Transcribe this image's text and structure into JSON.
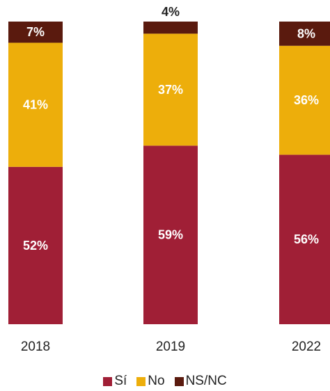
{
  "chart_data": {
    "type": "bar",
    "stacked": true,
    "normalized_percent": true,
    "categories": [
      "2018",
      "2019",
      "2022"
    ],
    "series": [
      {
        "name": "Sí",
        "values": [
          52,
          59,
          56
        ],
        "labels": [
          "52%",
          "59%",
          "56%"
        ],
        "color": "#a01f36"
      },
      {
        "name": "No",
        "values": [
          41,
          37,
          36
        ],
        "labels": [
          "41%",
          "37%",
          "36%"
        ],
        "color": "#edae0b"
      },
      {
        "name": "NS/NC",
        "values": [
          7,
          4,
          8
        ],
        "labels": [
          "7%",
          "4%",
          "8%"
        ],
        "color": "#5a1a0e"
      }
    ],
    "title": "",
    "xlabel": "",
    "ylabel": "",
    "ylim": [
      0,
      100
    ],
    "grid": false,
    "legend_position": "bottom-center"
  }
}
